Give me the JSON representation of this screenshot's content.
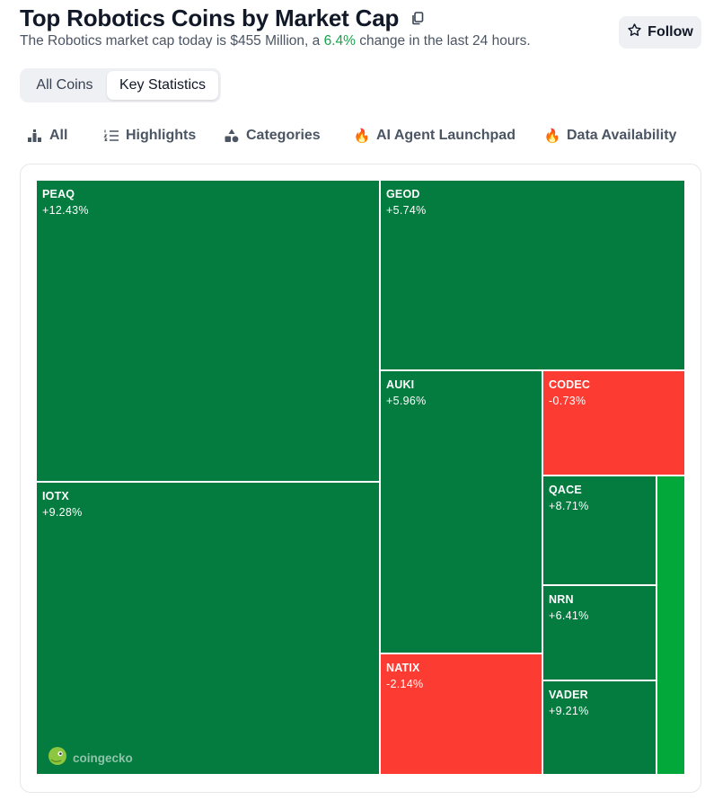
{
  "header": {
    "title": "Top Robotics Coins by Market Cap",
    "subtitle_prefix": "The Robotics market cap today is $455 Million, a ",
    "subtitle_pct": "6.4%",
    "subtitle_suffix": " change in the last 24 hours.",
    "follow_label": "Follow"
  },
  "view_tabs": [
    {
      "label": "All Coins",
      "active": false
    },
    {
      "label": "Key Statistics",
      "active": true
    }
  ],
  "filters": [
    {
      "label": "All",
      "icon": "bar-chart-icon"
    },
    {
      "label": "Highlights",
      "icon": "numbered-list-icon"
    },
    {
      "label": "Categories",
      "icon": "shapes-icon"
    },
    {
      "label": "AI Agent Launchpad",
      "icon": "fire-icon"
    },
    {
      "label": "Data Availability",
      "icon": "fire-icon"
    }
  ],
  "colors": {
    "positive": "#047b3f",
    "negative": "#fc3b32",
    "bright_positive": "#02a83a",
    "accent_green": "#16a34a"
  },
  "treemap": {
    "tiles": [
      {
        "symbol": "PEAQ",
        "change": "+12.43%"
      },
      {
        "symbol": "IOTX",
        "change": "+9.28%"
      },
      {
        "symbol": "GEOD",
        "change": "+5.74%"
      },
      {
        "symbol": "AUKI",
        "change": "+5.96%"
      },
      {
        "symbol": "NATIX",
        "change": "-2.14%"
      },
      {
        "symbol": "CODEC",
        "change": "-0.73%"
      },
      {
        "symbol": "QACE",
        "change": "+8.71%"
      },
      {
        "symbol": "NRN",
        "change": "+6.41%"
      },
      {
        "symbol": "VADER",
        "change": "+9.21%"
      },
      {
        "symbol": "",
        "change": ""
      }
    ],
    "watermark": "coingecko"
  }
}
